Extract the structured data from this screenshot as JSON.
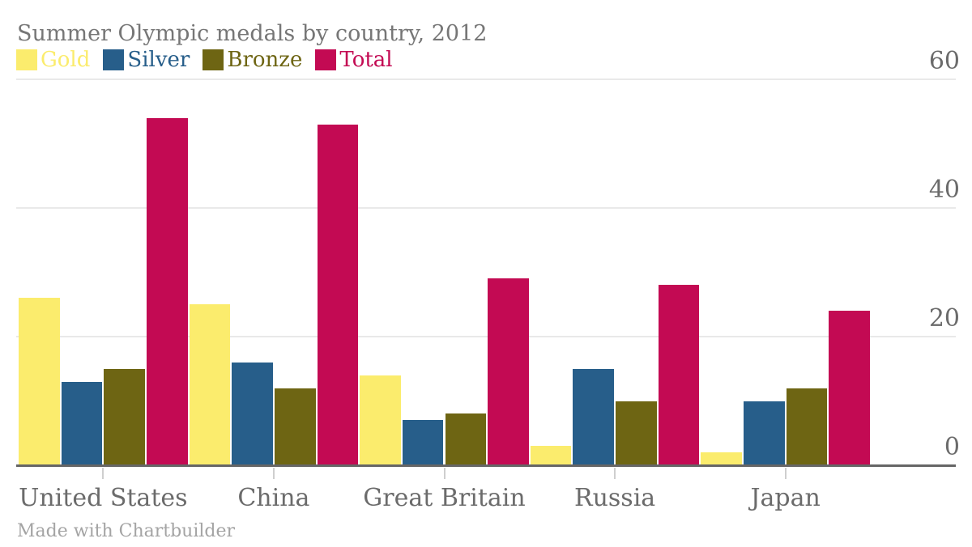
{
  "title": "Summer Olympic medals by country, 2012",
  "credit": "Made with Chartbuilder",
  "colors": {
    "gold": "#fbec6d",
    "silver": "#275e8a",
    "bronze": "#6e6513",
    "total": "#c30a53",
    "title_text": "#767676",
    "axis_text": "#6b6b6b",
    "credit_text": "#a4a4a4",
    "gridline": "#e9e9e9",
    "axis_line": "#666666",
    "tick_mark": "#cfcfcf",
    "background": "#ffffff"
  },
  "chart_data": {
    "type": "bar",
    "title": "Summer Olympic medals by country, 2012",
    "categories": [
      "United States",
      "China",
      "Great Britain",
      "Russia",
      "Japan"
    ],
    "series": [
      {
        "name": "Gold",
        "color": "#fbec6d",
        "values": [
          26,
          25,
          14,
          3,
          2
        ]
      },
      {
        "name": "Silver",
        "color": "#275e8a",
        "values": [
          13,
          16,
          7,
          15,
          10
        ]
      },
      {
        "name": "Bronze",
        "color": "#6e6513",
        "values": [
          15,
          12,
          8,
          10,
          12
        ]
      },
      {
        "name": "Total",
        "color": "#c30a53",
        "values": [
          54,
          53,
          29,
          28,
          24
        ]
      }
    ],
    "xlabel": "",
    "ylabel": "",
    "ylim": [
      0,
      60
    ],
    "y_ticks": [
      0,
      20,
      40,
      60
    ],
    "y_axis_side": "right",
    "grid": true,
    "legend_position": "top-left"
  }
}
